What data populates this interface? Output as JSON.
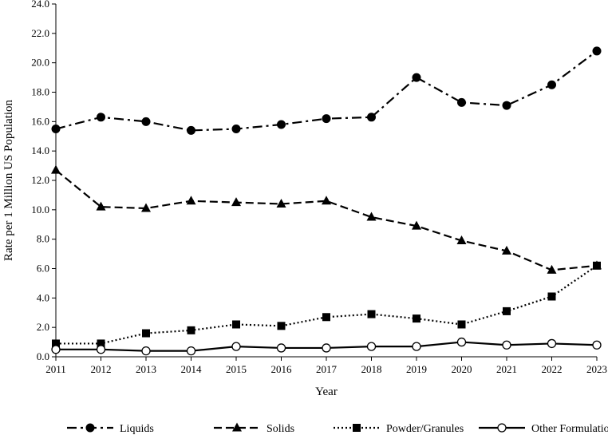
{
  "chart_data": {
    "type": "line",
    "title": "",
    "xlabel": "Year",
    "ylabel": "Rate per 1 Million US Population",
    "x": [
      2011,
      2012,
      2013,
      2014,
      2015,
      2016,
      2017,
      2018,
      2019,
      2020,
      2021,
      2022,
      2023
    ],
    "x_tick_labels": [
      "2011",
      "2012",
      "2013",
      "2014",
      "2015",
      "2016",
      "2017",
      "2018",
      "2019",
      "2020",
      "2021",
      "2022",
      "2023"
    ],
    "ylim": [
      0,
      24
    ],
    "y_ticks": [
      0,
      2,
      4,
      6,
      8,
      10,
      12,
      14,
      16,
      18,
      20,
      22,
      24
    ],
    "y_tick_labels": [
      "0.0",
      "2.0",
      "4.0",
      "6.0",
      "8.0",
      "10.0",
      "12.0",
      "14.0",
      "16.0",
      "18.0",
      "20.0",
      "22.0",
      "24.0"
    ],
    "grid": false,
    "legend_position": "bottom",
    "series": [
      {
        "name": "Liquids",
        "marker": "filled-circle",
        "line_style": "dash-dot",
        "values": [
          15.5,
          16.3,
          16.0,
          15.4,
          15.5,
          15.8,
          16.2,
          16.3,
          19.0,
          17.3,
          17.1,
          18.5,
          20.8
        ]
      },
      {
        "name": "Solids",
        "marker": "filled-triangle",
        "line_style": "dashed",
        "values": [
          12.7,
          10.2,
          10.1,
          10.6,
          10.5,
          10.4,
          10.6,
          9.5,
          8.9,
          7.9,
          7.2,
          5.9,
          6.2
        ]
      },
      {
        "name": "Powder/Granules",
        "marker": "filled-square",
        "line_style": "dotted",
        "values": [
          0.9,
          0.9,
          1.6,
          1.8,
          2.2,
          2.1,
          2.7,
          2.9,
          2.6,
          2.2,
          3.1,
          4.1,
          6.2
        ]
      },
      {
        "name": "Other Formulations",
        "marker": "open-circle",
        "line_style": "solid",
        "values": [
          0.5,
          0.5,
          0.4,
          0.4,
          0.7,
          0.6,
          0.6,
          0.7,
          0.7,
          1.0,
          0.8,
          0.9,
          0.8
        ]
      }
    ]
  }
}
